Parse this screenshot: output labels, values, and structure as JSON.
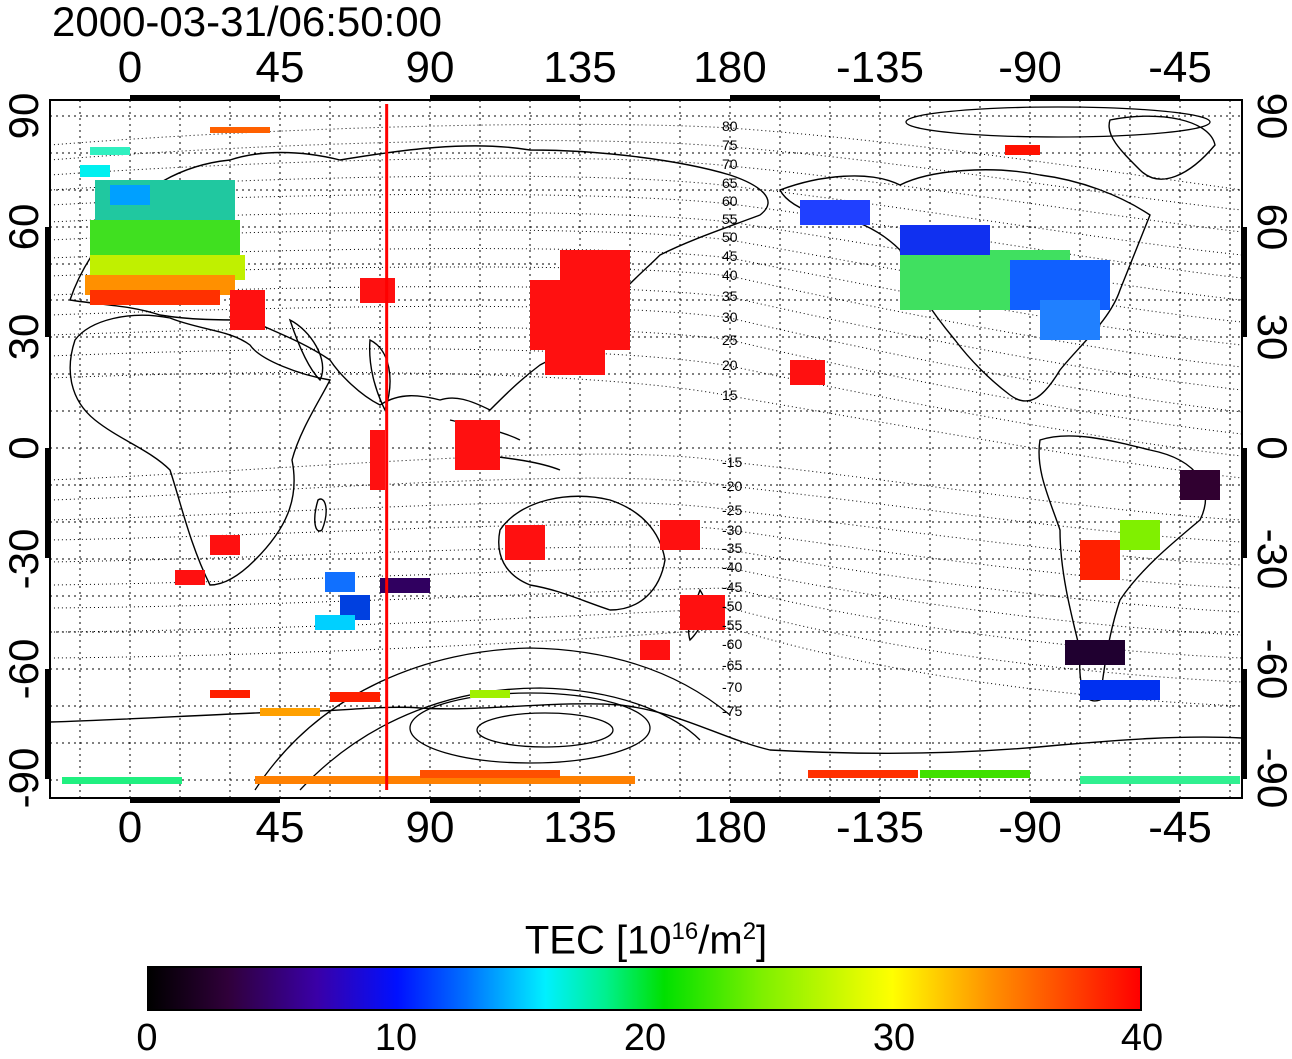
{
  "title": "2000-03-31/06:50:00",
  "lon_ticks": [
    "0",
    "45",
    "90",
    "135",
    "180",
    "-135",
    "-90",
    "-45"
  ],
  "lat_ticks_left": [
    "90",
    "60",
    "30",
    "0",
    "-30",
    "-60",
    "-90"
  ],
  "lat_ticks_right": [
    "90",
    "60",
    "30",
    "0",
    "-30",
    "-60",
    "-90"
  ],
  "contour_labels": [
    "80",
    "75",
    "70",
    "65",
    "60",
    "55",
    "50",
    "45",
    "40",
    "35",
    "30",
    "25",
    "20",
    "15",
    "-15",
    "-20",
    "-25",
    "-30",
    "-35",
    "-40",
    "-45",
    "-50",
    "-55",
    "-60",
    "-65",
    "-70",
    "-75"
  ],
  "marker_longitude": 77,
  "colorbar": {
    "label_prefix": "TEC  [10",
    "label_exp1": "16",
    "label_mid": "/m",
    "label_exp2": "2",
    "label_suffix": "]",
    "ticks": [
      "0",
      "10",
      "20",
      "30",
      "40"
    ],
    "colors": [
      "#000000",
      "#3a00a8",
      "#0010ff",
      "#00f0ff",
      "#00e000",
      "#ffff00",
      "#ff3000",
      "#ff0000"
    ]
  },
  "colors": {
    "marker_line": "#ff0000",
    "frame": "#000000"
  }
}
